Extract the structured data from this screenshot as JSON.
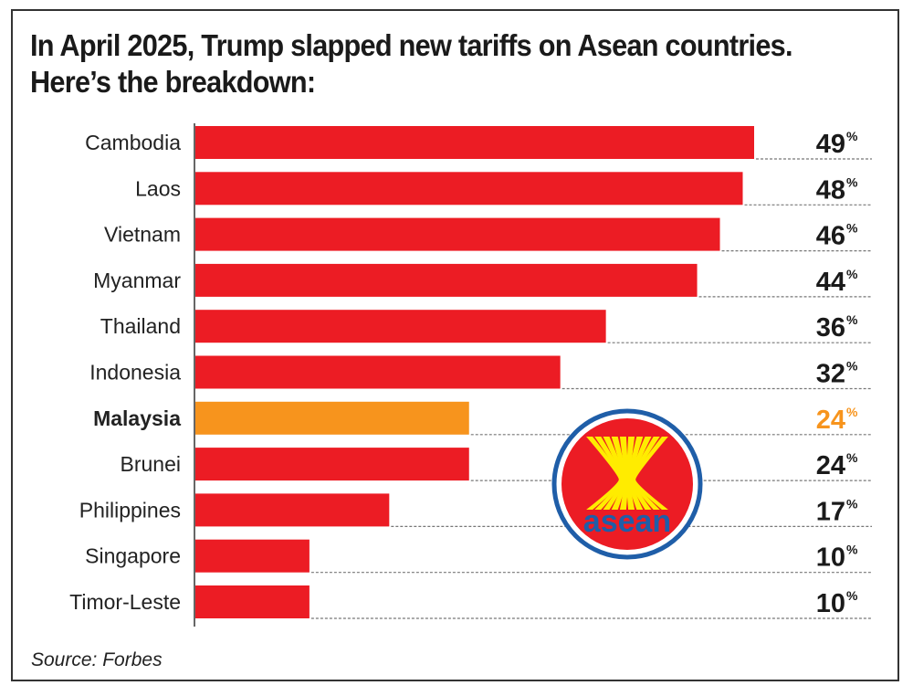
{
  "chart_data": {
    "type": "bar",
    "orientation": "horizontal",
    "title": "In April 2025, Trump slapped new tariffs on Asean countries. Here’s the breakdown:",
    "source": "Source: Forbes",
    "categories": [
      "Cambodia",
      "Laos",
      "Vietnam",
      "Myanmar",
      "Thailand",
      "Indonesia",
      "Malaysia",
      "Brunei",
      "Philippines",
      "Singapore",
      "Timor-Leste"
    ],
    "values": [
      49,
      48,
      46,
      44,
      36,
      32,
      24,
      24,
      17,
      10,
      10
    ],
    "value_suffix": "%",
    "highlight": "Malaysia",
    "xlim": [
      0,
      49
    ],
    "grid": false,
    "legend": "none",
    "logo_text": "asean"
  },
  "colors": {
    "bar": "#ec1c24",
    "highlight": "#f7941d",
    "text": "#1a1a1a",
    "logo_ring": "#1f5ea8",
    "logo_fill": "#ec1c24",
    "logo_yellow": "#ffec00"
  }
}
